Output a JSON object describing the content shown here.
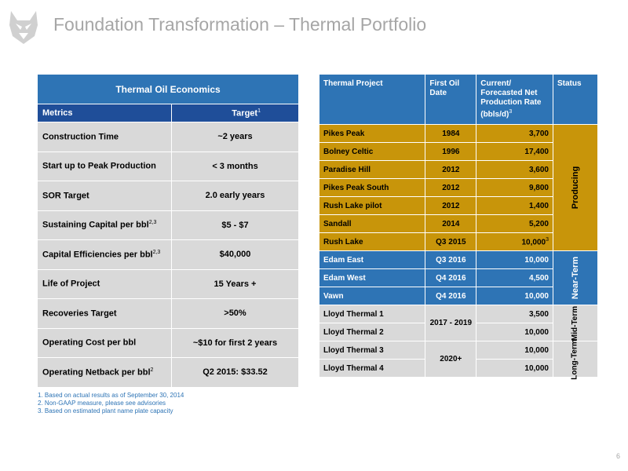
{
  "header": {
    "title": "Foundation Transformation – Thermal Portfolio"
  },
  "econ": {
    "title": "Thermal Oil Economics",
    "col_metrics": "Metrics",
    "col_target": "Target",
    "col_target_sup": "1",
    "rows": [
      {
        "metric": "Construction Time",
        "sup": "",
        "target": "~2 years"
      },
      {
        "metric": "Start up to Peak Production",
        "sup": "",
        "target": "< 3 months"
      },
      {
        "metric": "SOR Target",
        "sup": "",
        "target": "2.0 early years"
      },
      {
        "metric": "Sustaining Capital per bbl",
        "sup": "2,3",
        "target": "$5 - $7"
      },
      {
        "metric": "Capital Efficiencies per bbl",
        "sup": "2,3",
        "target": "$40,000"
      },
      {
        "metric": "Life of Project",
        "sup": "",
        "target": "15 Years +"
      },
      {
        "metric": "Recoveries Target",
        "sup": "",
        "target": ">50%"
      },
      {
        "metric": "Operating Cost per bbl",
        "sup": "",
        "target": "~$10 for first 2 years"
      },
      {
        "metric": "Operating Netback per bbl",
        "sup": "2",
        "target": "Q2 2015: $33.52"
      }
    ]
  },
  "footnotes": [
    "1. Based on actual results as of September 30, 2014",
    "2. Non-GAAP measure, please see advisories",
    "3. Based on estimated plant name plate capacity"
  ],
  "thermal": {
    "headers": {
      "project": "Thermal Project",
      "date": "First Oil Date",
      "rate": "Current/ Forecasted Net Production Rate (bbls/d)",
      "rate_sup": "3",
      "status": "Status"
    },
    "rows": [
      {
        "project": "Pikes Peak",
        "date": "1984",
        "rate": "3,700",
        "rate_sup": ""
      },
      {
        "project": "Bolney Celtic",
        "date": "1996",
        "rate": "17,400",
        "rate_sup": ""
      },
      {
        "project": "Paradise Hill",
        "date": "2012",
        "rate": "3,600",
        "rate_sup": ""
      },
      {
        "project": "Pikes Peak South",
        "date": "2012",
        "rate": "9,800",
        "rate_sup": ""
      },
      {
        "project": "Rush Lake pilot",
        "date": "2012",
        "rate": "1,400",
        "rate_sup": ""
      },
      {
        "project": "Sandall",
        "date": "2014",
        "rate": "5,200",
        "rate_sup": ""
      },
      {
        "project": "Rush Lake",
        "date": "Q3 2015",
        "rate": "10,000",
        "rate_sup": "3"
      },
      {
        "project": "Edam East",
        "date": "Q3 2016",
        "rate": "10,000",
        "rate_sup": ""
      },
      {
        "project": "Edam West",
        "date": "Q4 2016",
        "rate": "4,500",
        "rate_sup": ""
      },
      {
        "project": "Vawn",
        "date": "Q4 2016",
        "rate": "10,000",
        "rate_sup": ""
      },
      {
        "project": "Lloyd Thermal 1",
        "date": "2017 - 2019",
        "rate": "3,500",
        "rate_sup": ""
      },
      {
        "project": "Lloyd Thermal 2",
        "date": "",
        "rate": "10,000",
        "rate_sup": ""
      },
      {
        "project": "Lloyd Thermal 3",
        "date": "2020+",
        "rate": "10,000",
        "rate_sup": ""
      },
      {
        "project": "Lloyd Thermal 4",
        "date": "",
        "rate": "10,000",
        "rate_sup": ""
      }
    ],
    "status_groups": {
      "producing": "Producing",
      "near_term": "Near-Term",
      "mid_term": "Mid-Term",
      "long_term": "Long-Term"
    }
  },
  "page_number": "6",
  "colors": {
    "blue": "#2e74b5",
    "dark_blue": "#1f4e99",
    "gold": "#c8950a",
    "grey": "#d9d9d9",
    "title_grey": "#a6a6a6"
  }
}
